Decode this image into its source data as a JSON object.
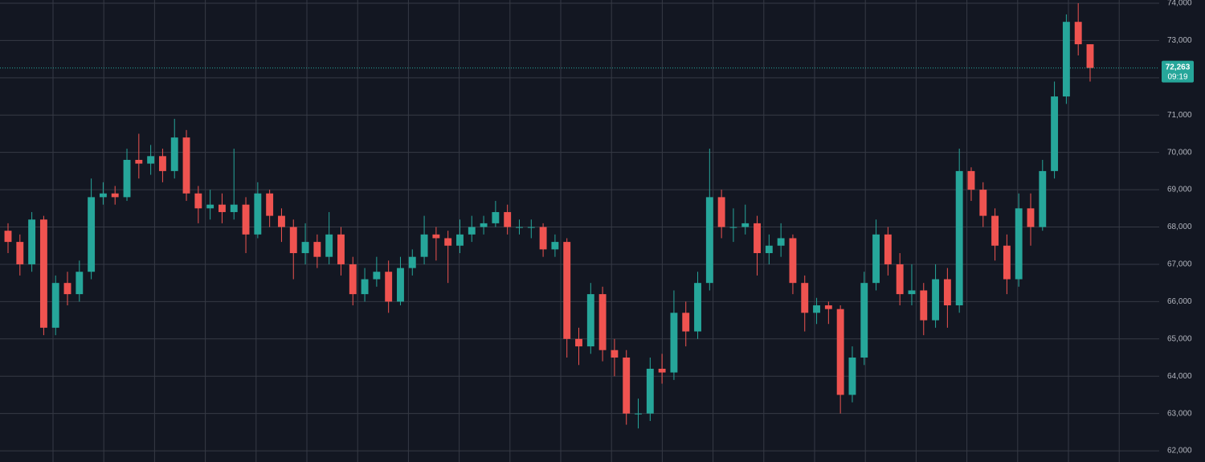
{
  "chart_data": {
    "type": "candlestick",
    "open": [
      67900,
      67600,
      67000,
      68200,
      65300,
      66500,
      66200,
      66800,
      68800,
      68900,
      68800,
      69800,
      69700,
      69900,
      69500,
      70400,
      68900,
      68500,
      68600,
      68400,
      68600,
      67800,
      68900,
      68300,
      68000,
      67300,
      67600,
      67200,
      67800,
      67000,
      66200,
      66600,
      66800,
      66000,
      66900,
      67200,
      67800,
      67700,
      67500,
      67800,
      68000,
      68100,
      68400,
      68000,
      68000,
      68000,
      67400,
      67600,
      65000,
      64800,
      66200,
      64700,
      64500,
      63000,
      63000,
      64200,
      64100,
      65700,
      65200,
      66500,
      68800,
      68000,
      68000,
      68100,
      67300,
      67500,
      67700,
      66500,
      65700,
      65900,
      65800,
      63500,
      64500,
      66500,
      67800,
      67000,
      66200,
      66300,
      65500,
      66600,
      65900,
      69500,
      69000,
      68300,
      67500,
      66600,
      68500,
      68000,
      69500,
      71500,
      73500,
      72900
    ],
    "high": [
      68100,
      67800,
      68400,
      68300,
      66700,
      66800,
      67100,
      69300,
      69200,
      69100,
      70100,
      70500,
      70200,
      70100,
      70900,
      70600,
      69100,
      69000,
      68900,
      70100,
      68800,
      69200,
      69000,
      68500,
      68200,
      68100,
      67800,
      68400,
      68000,
      67200,
      66900,
      67200,
      67100,
      67200,
      67400,
      68300,
      68000,
      67900,
      68200,
      68300,
      68300,
      68700,
      68600,
      68200,
      68200,
      68100,
      67800,
      67700,
      65300,
      66500,
      66400,
      65000,
      64700,
      63400,
      64500,
      64600,
      66300,
      66000,
      66800,
      70100,
      69000,
      68500,
      68600,
      68300,
      67800,
      68100,
      67800,
      66700,
      66100,
      66000,
      65900,
      64800,
      66800,
      68200,
      68000,
      67300,
      67000,
      66500,
      67000,
      66900,
      70100,
      69600,
      69200,
      68500,
      67800,
      68900,
      68900,
      69800,
      71900,
      73700,
      74000,
      72900
    ],
    "low": [
      67300,
      66700,
      66800,
      65100,
      65100,
      65900,
      66000,
      66600,
      68600,
      68600,
      68700,
      69300,
      69400,
      69200,
      69300,
      68700,
      68100,
      68200,
      68100,
      68200,
      67300,
      67700,
      68000,
      67600,
      66600,
      67000,
      66900,
      67000,
      66700,
      65900,
      66000,
      66400,
      65700,
      65900,
      66700,
      67000,
      67100,
      66500,
      67300,
      67600,
      67800,
      68000,
      67800,
      67800,
      67700,
      67200,
      67200,
      64500,
      64300,
      64600,
      64400,
      64000,
      62700,
      62600,
      62800,
      63800,
      63900,
      64800,
      65000,
      66300,
      67700,
      67600,
      67800,
      66700,
      67000,
      67200,
      66200,
      65200,
      65400,
      65400,
      63000,
      63300,
      64300,
      66300,
      66700,
      65900,
      65900,
      65100,
      65300,
      65300,
      65700,
      68700,
      68000,
      67100,
      66200,
      66400,
      67500,
      67900,
      69300,
      71300,
      72600,
      71900
    ],
    "close": [
      67600,
      67000,
      68200,
      65300,
      66500,
      66200,
      66800,
      68800,
      68900,
      68800,
      69800,
      69700,
      69900,
      69500,
      70400,
      68900,
      68500,
      68600,
      68400,
      68600,
      67800,
      68900,
      68300,
      68000,
      67300,
      67600,
      67200,
      67800,
      67000,
      66200,
      66600,
      66800,
      66000,
      66900,
      67200,
      67800,
      67700,
      67500,
      67800,
      68000,
      68100,
      68400,
      68000,
      68000,
      68000,
      67400,
      67600,
      65000,
      64800,
      66200,
      64700,
      64500,
      63000,
      63000,
      64200,
      64100,
      65700,
      65200,
      66500,
      68800,
      68000,
      68000,
      68100,
      67300,
      67500,
      67700,
      66500,
      65700,
      65900,
      65800,
      63500,
      64500,
      66500,
      67800,
      67000,
      66200,
      66300,
      65500,
      66600,
      65900,
      69500,
      69000,
      68300,
      67500,
      66600,
      68500,
      68000,
      69500,
      71500,
      73500,
      72900,
      72263
    ],
    "up_color": "#26a69a",
    "down_color": "#ef5350",
    "ylim": [
      61700,
      74086
    ],
    "yticks": [
      {
        "value": 62000,
        "label": "62,000"
      },
      {
        "value": 63000,
        "label": "63,000"
      },
      {
        "value": 64000,
        "label": "64,000"
      },
      {
        "value": 65000,
        "label": "65,000"
      },
      {
        "value": 66000,
        "label": "66,000"
      },
      {
        "value": 67000,
        "label": "67,000"
      },
      {
        "value": 68000,
        "label": "68,000"
      },
      {
        "value": 69000,
        "label": "69,000"
      },
      {
        "value": 70000,
        "label": "70,000"
      },
      {
        "value": 71000,
        "label": "71,000"
      },
      {
        "value": 72000,
        "label": "72,000"
      },
      {
        "value": 73000,
        "label": "73,000"
      },
      {
        "value": 74000,
        "label": "74,000"
      }
    ],
    "grid": true,
    "last_price": {
      "value": 72263,
      "label": "72,263"
    },
    "countdown": "09:19"
  }
}
